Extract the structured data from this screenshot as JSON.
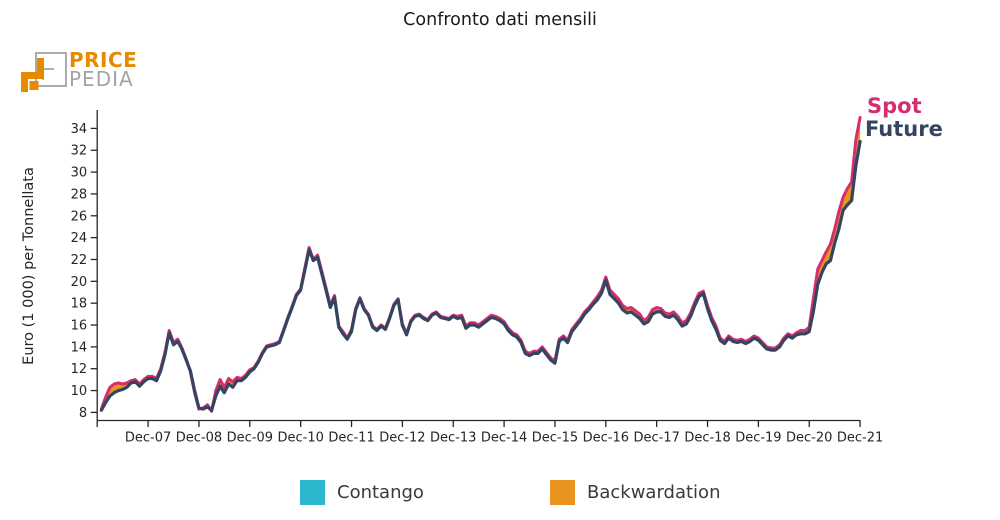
{
  "title": "Confronto dati mensili",
  "logo": {
    "line1": "PRICE",
    "line2": "PEDIA"
  },
  "series_labels": {
    "spot": "Spot",
    "future": "Future"
  },
  "legend": [
    {
      "id": "contango",
      "label": "Contango",
      "color": "#2bb8ce"
    },
    {
      "id": "backwardation",
      "label": "Backwardation",
      "color": "#e8941f"
    }
  ],
  "colors": {
    "spot": "#d62d6e",
    "future": "#344561",
    "contango": "#2bb8ce",
    "backwardation": "#e8941f",
    "axis": "#262626",
    "logo_orange": "#e78a00",
    "logo_gray": "#a3a3a3"
  },
  "y_axis": {
    "label": "Euro (1 000) per Tonnellata",
    "ticks": [
      8,
      10,
      12,
      14,
      16,
      18,
      20,
      22,
      24,
      26,
      28,
      30,
      32,
      34
    ]
  },
  "x_axis": {
    "tick_labels": [
      "Dec-07",
      "Dec-08",
      "Dec-09",
      "Dec-10",
      "Dec-11",
      "Dec-12",
      "Dec-13",
      "Dec-14",
      "Dec-15",
      "Dec-16",
      "Dec-17",
      "Dec-18",
      "Dec-19",
      "Dec-20",
      "Dec-21"
    ]
  },
  "chart_data": {
    "type": "line",
    "title": "Confronto dati mensili",
    "ylabel": "Euro (1 000) per Tonnellata",
    "ylim": [
      7.3,
      35.6
    ],
    "x_start": "2007-01",
    "x_end": "2021-12",
    "frequency": "monthly",
    "grid": false,
    "legend_position": "bottom",
    "bands": {
      "backwardation": "spot > future (orange fill)",
      "contango": "future > spot (cyan fill)"
    },
    "series": [
      {
        "name": "Spot",
        "color": "#d62d6e",
        "values": [
          8.3,
          9.4,
          10.3,
          10.6,
          10.7,
          10.6,
          10.7,
          10.9,
          11.0,
          10.6,
          11.0,
          11.3,
          11.3,
          11.1,
          12.0,
          13.5,
          15.5,
          14.4,
          14.7,
          13.9,
          12.9,
          11.7,
          9.8,
          8.3,
          8.4,
          8.7,
          8.1,
          10.0,
          11.0,
          10.3,
          11.1,
          10.8,
          11.2,
          11.1,
          11.4,
          11.9,
          12.1,
          12.7,
          13.5,
          14.1,
          14.2,
          14.3,
          14.5,
          15.6,
          16.7,
          17.7,
          18.8,
          19.3,
          21.2,
          23.1,
          22.0,
          22.4,
          20.9,
          19.4,
          17.8,
          18.7,
          15.9,
          15.4,
          14.8,
          15.6,
          17.5,
          18.5,
          17.5,
          17.0,
          15.9,
          15.6,
          16.0,
          15.7,
          16.7,
          17.9,
          18.4,
          16.1,
          15.2,
          16.4,
          16.9,
          17.0,
          16.7,
          16.5,
          17.0,
          17.2,
          16.8,
          16.7,
          16.6,
          16.9,
          16.8,
          16.9,
          15.9,
          16.2,
          16.2,
          16.0,
          16.3,
          16.6,
          16.9,
          16.8,
          16.6,
          16.3,
          15.7,
          15.3,
          15.1,
          14.6,
          13.6,
          13.4,
          13.6,
          13.6,
          14.0,
          13.5,
          13.0,
          12.7,
          14.7,
          15.0,
          14.6,
          15.6,
          16.1,
          16.6,
          17.2,
          17.6,
          18.1,
          18.6,
          19.2,
          20.4,
          19.2,
          18.8,
          18.4,
          17.8,
          17.5,
          17.6,
          17.3,
          17.0,
          16.4,
          16.7,
          17.4,
          17.6,
          17.5,
          17.1,
          17.0,
          17.2,
          16.8,
          16.2,
          16.4,
          17.1,
          18.1,
          18.9,
          19.1,
          17.8,
          16.7,
          15.9,
          14.8,
          14.5,
          15.0,
          14.7,
          14.6,
          14.7,
          14.5,
          14.7,
          15.0,
          14.8,
          14.4,
          14.0,
          13.9,
          13.9,
          14.2,
          14.8,
          15.2,
          15.0,
          15.3,
          15.5,
          15.5,
          15.8,
          18.5,
          21.1,
          21.9,
          22.7,
          23.4,
          24.8,
          26.4,
          27.7,
          28.5,
          29.1,
          33.0,
          35.0
        ]
      },
      {
        "name": "Future",
        "color": "#344561",
        "values": [
          8.2,
          8.9,
          9.5,
          9.8,
          10.0,
          10.1,
          10.3,
          10.7,
          10.8,
          10.4,
          10.8,
          11.1,
          11.1,
          10.9,
          11.8,
          13.3,
          15.3,
          14.2,
          14.5,
          13.8,
          12.8,
          11.8,
          10.0,
          8.4,
          8.3,
          8.5,
          8.2,
          9.5,
          10.4,
          9.8,
          10.6,
          10.3,
          10.9,
          10.9,
          11.2,
          11.7,
          12.0,
          12.6,
          13.4,
          14.0,
          14.1,
          14.2,
          14.4,
          15.5,
          16.6,
          17.6,
          18.7,
          19.2,
          21.0,
          22.9,
          21.9,
          22.2,
          20.7,
          19.2,
          17.6,
          18.5,
          15.8,
          15.2,
          14.7,
          15.4,
          17.4,
          18.4,
          17.4,
          16.9,
          15.8,
          15.5,
          15.9,
          15.6,
          16.6,
          17.8,
          18.3,
          16.0,
          15.1,
          16.3,
          16.8,
          16.9,
          16.6,
          16.4,
          16.9,
          17.1,
          16.7,
          16.6,
          16.5,
          16.8,
          16.6,
          16.7,
          15.7,
          16.0,
          16.0,
          15.8,
          16.1,
          16.4,
          16.7,
          16.6,
          16.4,
          16.1,
          15.5,
          15.1,
          14.9,
          14.4,
          13.4,
          13.2,
          13.4,
          13.4,
          13.8,
          13.3,
          12.8,
          12.5,
          14.5,
          14.8,
          14.4,
          15.4,
          15.9,
          16.4,
          17.0,
          17.4,
          17.9,
          18.3,
          18.9,
          20.1,
          18.8,
          18.4,
          18.0,
          17.4,
          17.1,
          17.2,
          16.9,
          16.6,
          16.1,
          16.3,
          17.0,
          17.2,
          17.2,
          16.8,
          16.7,
          16.9,
          16.5,
          15.9,
          16.1,
          16.8,
          17.8,
          18.6,
          18.9,
          17.5,
          16.4,
          15.6,
          14.6,
          14.3,
          14.8,
          14.5,
          14.4,
          14.5,
          14.3,
          14.5,
          14.8,
          14.6,
          14.2,
          13.8,
          13.7,
          13.7,
          14.0,
          14.6,
          15.0,
          14.8,
          15.1,
          15.2,
          15.2,
          15.4,
          17.3,
          19.7,
          20.8,
          21.6,
          21.9,
          23.5,
          24.8,
          26.5,
          27.0,
          27.4,
          30.6,
          32.8
        ]
      }
    ]
  }
}
